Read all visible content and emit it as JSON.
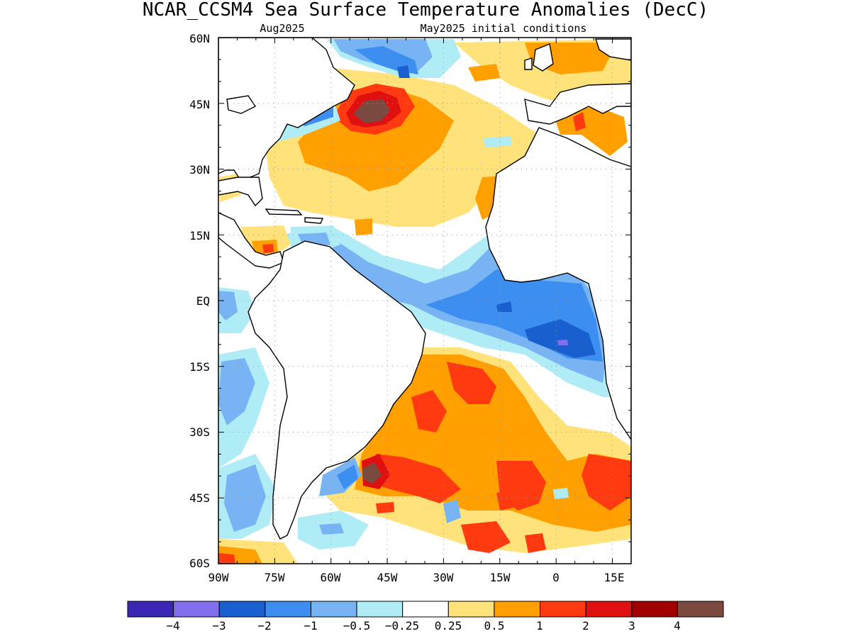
{
  "title": "NCAR_CCSM4 Sea Surface Temperature Anomalies (DecC)",
  "target_month": "Aug2025",
  "init_label": "May2025 initial conditions",
  "lat_labels": [
    "60N",
    "45N",
    "30N",
    "15N",
    "EQ",
    "15S",
    "30S",
    "45S",
    "60S"
  ],
  "lon_labels": [
    "90W",
    "75W",
    "60W",
    "45W",
    "30W",
    "15W",
    "0",
    "15E"
  ],
  "colorbar": {
    "colors": [
      "#3a28b4",
      "#8070ee",
      "#1a5fd0",
      "#3c8ff0",
      "#78b4f4",
      "#b0ecf6",
      "#ffffff",
      "#ffe27a",
      "#ff9f00",
      "#ff3a10",
      "#e01010",
      "#a00000",
      "#7a4a40"
    ],
    "labels": [
      "−4",
      "−3",
      "−2",
      "−1",
      "−0.5",
      "−0.25",
      "0.25",
      "0.5",
      "1",
      "2",
      "3",
      "4"
    ]
  },
  "map_extent": {
    "lon": [
      -90,
      20
    ],
    "lat": [
      -60,
      60
    ]
  }
}
